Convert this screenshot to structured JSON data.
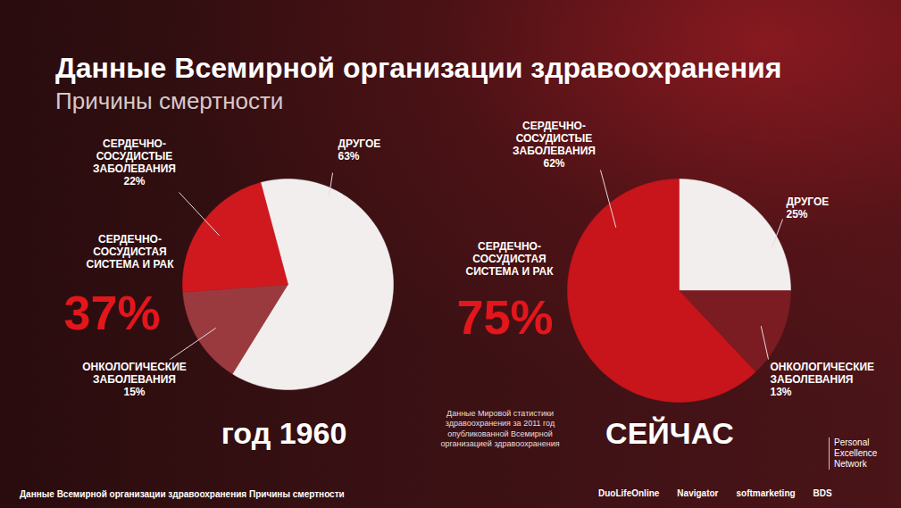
{
  "title": "Данные Всемирной организации здравоохранения",
  "subtitle": "Причины смертности",
  "note": "Данные Мировой статистики здравоохранения за 2011 год опубликованной Всемирной организацией здравоохранения",
  "footer": "Данные Всемирной организации здравоохранения Причины смертности",
  "logos": [
    "DuoLifeOnline",
    "Navigator",
    "softmarketing",
    "BDS"
  ],
  "network": "Personal Excellence Network",
  "chart_data": [
    {
      "type": "pie",
      "title": "год 1960",
      "categories": [
        "ДРУГОЕ",
        "ОНКОЛОГИЧЕСКИЕ ЗАБОЛЕВАНИЯ",
        "СЕРДЕЧНО-СОСУДИСТЫЕ ЗАБОЛЕВАНИЯ"
      ],
      "values": [
        63,
        15,
        22
      ],
      "value_labels": [
        "63%",
        "15%",
        "22%"
      ],
      "colors": [
        "#f3eeee",
        "#9a3a3e",
        "#d0191f"
      ],
      "data_labels": true,
      "annotations": [
        {
          "text": "СЕРДЕЧНО-СОСУДИСТАЯ СИСТЕМА И РАК",
          "value": 37,
          "value_label": "37%"
        }
      ]
    },
    {
      "type": "pie",
      "title": "СЕЙЧАС",
      "categories": [
        "ДРУГОЕ",
        "ОНКОЛОГИЧЕСКИЕ ЗАБОЛЕВАНИЯ",
        "СЕРДЕЧНО-СОСУДИСТЫЕ ЗАБОЛЕВАНИЯ"
      ],
      "values": [
        25,
        13,
        62
      ],
      "value_labels": [
        "25%",
        "13%",
        "62%"
      ],
      "colors": [
        "#f3eeee",
        "#7a1c21",
        "#c8141b"
      ],
      "data_labels": true,
      "annotations": [
        {
          "text": "СЕРДЕЧНО-СОСУДИСТАЯ СИСТЕМА И РАК",
          "value": 75,
          "value_label": "75%"
        }
      ]
    }
  ]
}
